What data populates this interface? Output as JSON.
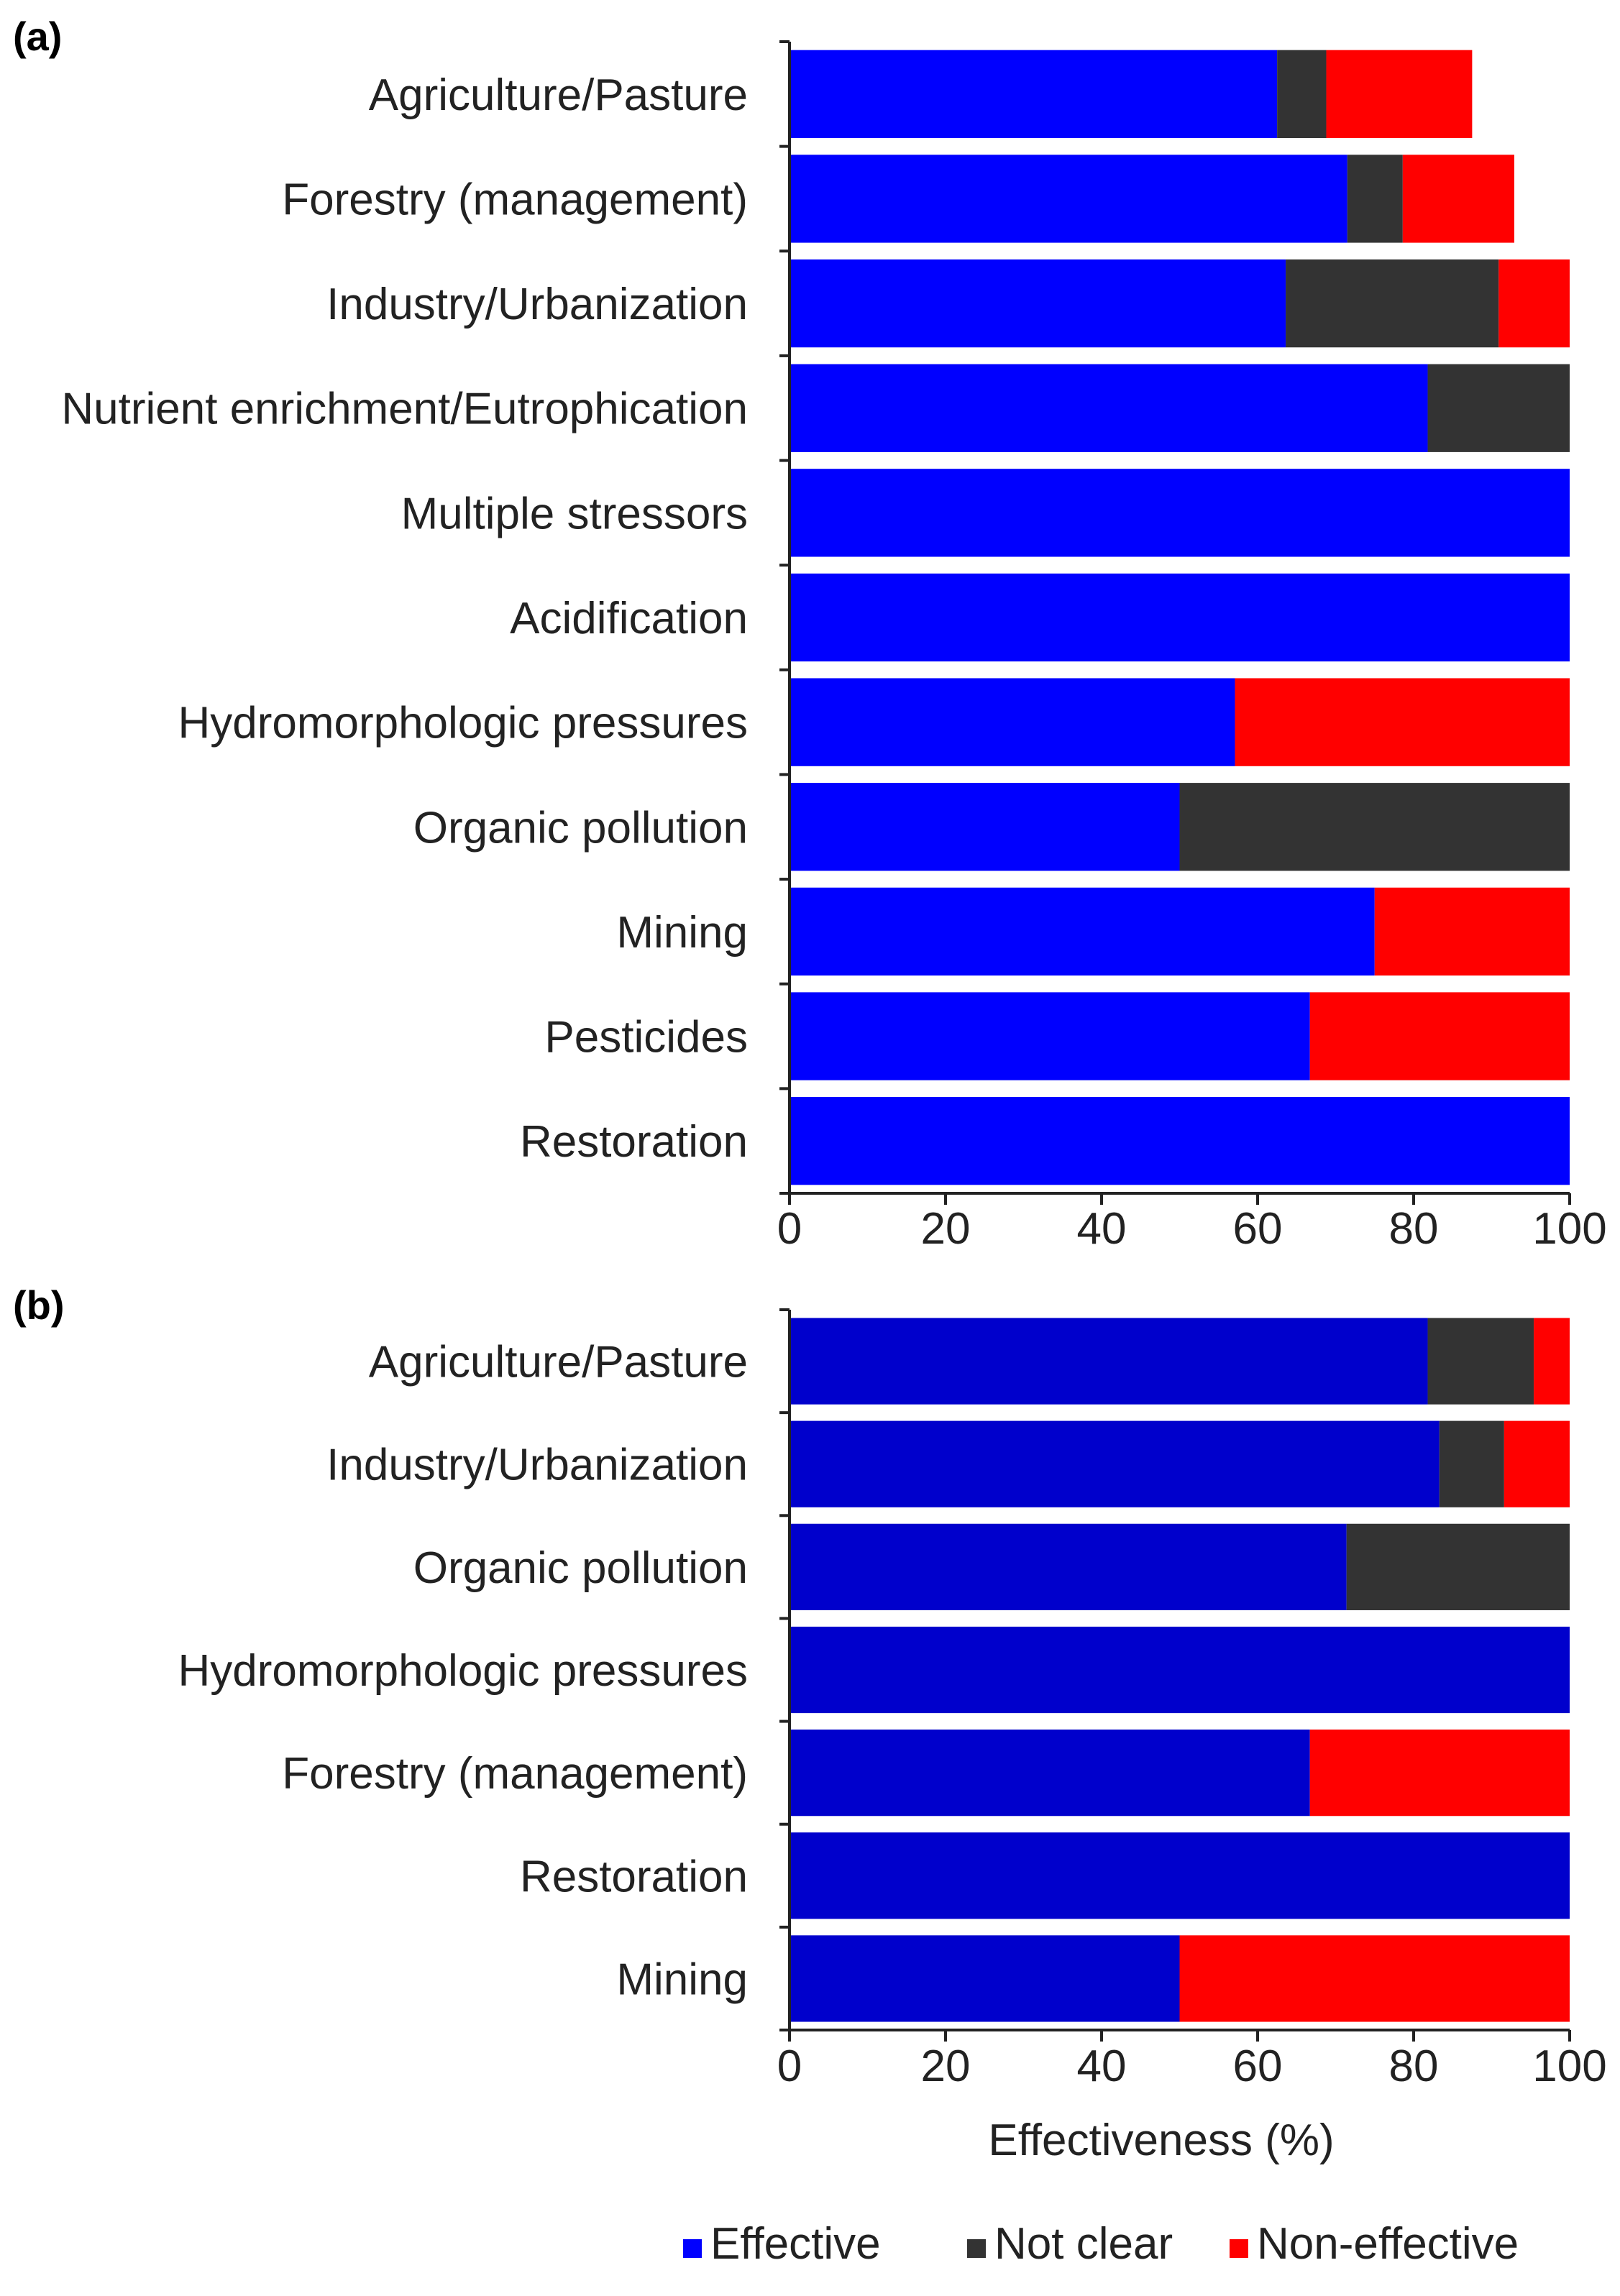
{
  "colors": {
    "effective_a": "#0000ff",
    "effective_b": "#0000cc",
    "not_clear": "#333333",
    "non_effective": "#ff0000"
  },
  "legend": {
    "effective": "Effective",
    "not_clear": "Not clear",
    "non_effective": "Non-effective"
  },
  "chart_data": [
    {
      "type": "bar",
      "orientation": "horizontal",
      "stacked": true,
      "panel": "(a)",
      "xlabel": "",
      "xlim": [
        0,
        100
      ],
      "xticks": [
        "0",
        "20",
        "40",
        "60",
        "80",
        "100"
      ],
      "categories": [
        "Agriculture/Pasture",
        "Forestry (management)",
        "Industry/Urbanization",
        "Nutrient enrichment/Eutrophication",
        "Multiple stressors",
        "Acidification",
        "Hydromorphologic pressures",
        "Organic pollution",
        "Mining",
        "Pesticides",
        "Restoration"
      ],
      "series": [
        {
          "name": "Effective",
          "values": [
            62.5,
            71.5,
            63.6,
            81.8,
            100,
            100,
            57.1,
            50,
            75,
            66.7,
            100
          ]
        },
        {
          "name": "Not clear",
          "values": [
            6.3,
            7.1,
            27.3,
            18.2,
            0,
            0,
            0,
            50,
            0,
            0,
            0
          ]
        },
        {
          "name": "Non-effective",
          "values": [
            18.7,
            14.3,
            9.1,
            0,
            0,
            0,
            42.9,
            0,
            25,
            33.3,
            0
          ]
        }
      ]
    },
    {
      "type": "bar",
      "orientation": "horizontal",
      "stacked": true,
      "panel": "(b)",
      "xlabel": "Effectiveness (%)",
      "xlim": [
        0,
        100
      ],
      "xticks": [
        "0",
        "20",
        "40",
        "60",
        "80",
        "100"
      ],
      "categories": [
        "Agriculture/Pasture",
        "Industry/Urbanization",
        "Organic pollution",
        "Hydromorphologic pressures",
        "Forestry (management)",
        "Restoration",
        "Mining"
      ],
      "series": [
        {
          "name": "Effective",
          "values": [
            81.8,
            83.3,
            71.4,
            100,
            66.7,
            100,
            50
          ]
        },
        {
          "name": "Not clear",
          "values": [
            13.6,
            8.3,
            28.6,
            0,
            0,
            0,
            0
          ]
        },
        {
          "name": "Non-effective",
          "values": [
            4.6,
            8.4,
            0,
            0,
            33.3,
            0,
            50
          ]
        }
      ]
    }
  ]
}
